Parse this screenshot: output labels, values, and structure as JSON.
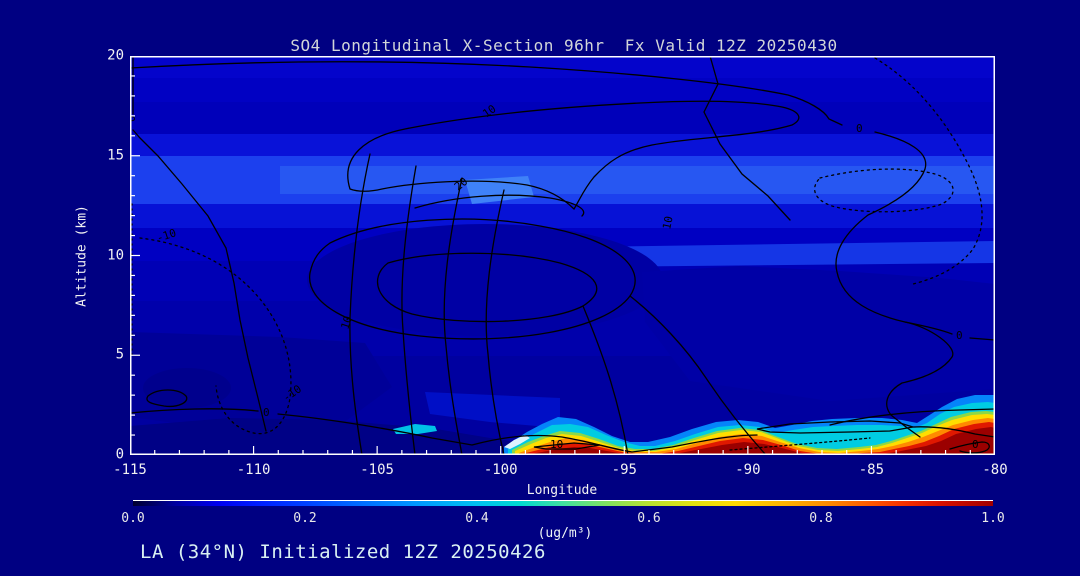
{
  "title": "SO4 Longitudinal X-Section 96hr  Fx Valid 12Z 20250430",
  "footer": "LA (34°N) Initialized 12Z 20250426",
  "axes": {
    "x": {
      "label": "Longitude",
      "ticks": [
        "-115",
        "-110",
        "-105",
        "-100",
        "-95",
        "-90",
        "-85",
        "-80"
      ]
    },
    "y": {
      "label": "Altitude (km)",
      "ticks": [
        "20",
        "15",
        "10",
        "5",
        "0"
      ]
    }
  },
  "colorbar": {
    "label": "(ug/m³)",
    "ticks": [
      "0.0",
      "0.2",
      "0.4",
      "0.6",
      "0.8",
      "1.0"
    ]
  },
  "plot": {
    "contour_labels": [
      "0",
      "10",
      "20",
      "10",
      "10",
      "-10",
      "-10",
      "0",
      "0",
      "0",
      "10",
      "0"
    ]
  },
  "chart_data": {
    "type": "heatmap",
    "title": "SO4 Longitudinal X-Section 96hr  Fx Valid 12Z 20250430",
    "subtitle": "LA (34°N) Initialized 12Z 20250426",
    "xlabel": "Longitude",
    "ylabel": "Altitude (km)",
    "xlim": [
      -115,
      -80
    ],
    "ylim": [
      0,
      20
    ],
    "x_ticks": [
      -115,
      -110,
      -105,
      -100,
      -95,
      -90,
      -85,
      -80
    ],
    "y_ticks": [
      0,
      5,
      10,
      15,
      20
    ],
    "fill_units": "ug/m3",
    "colorbar": {
      "label": "(ug/m³)",
      "min": 0.0,
      "max": 1.0,
      "ticks": [
        0.0,
        0.2,
        0.4,
        0.6,
        0.8,
        1.0
      ],
      "palette_stops": [
        "#000030",
        "#0000f0",
        "#0040ff",
        "#0098ff",
        "#00d8d0",
        "#80e060",
        "#e0e010",
        "#ffd800",
        "#ff8800",
        "#f42c00",
        "#a00000"
      ]
    },
    "fill_features": [
      {
        "feature": "bulk troposphere/stratosphere",
        "x": [
          -115,
          -80
        ],
        "alt_km": [
          2,
          20
        ],
        "value_range": [
          0.1,
          0.25
        ]
      },
      {
        "feature": "enhanced layer",
        "x": [
          -115,
          -80
        ],
        "alt_km": [
          12.5,
          15
        ],
        "value_range": [
          0.25,
          0.35
        ]
      },
      {
        "feature": "secondary enhanced layer (east half)",
        "x": [
          -96,
          -80
        ],
        "alt_km": [
          9.5,
          10.7
        ],
        "value_range": [
          0.22,
          0.3
        ]
      },
      {
        "feature": "mid-level minimum",
        "x": [
          -107,
          -92
        ],
        "alt_km": [
          3.5,
          9
        ],
        "value_range": [
          0.1,
          0.15
        ]
      },
      {
        "feature": "near-surface clean wedge (west)",
        "x": [
          -115,
          -98
        ],
        "alt_km": [
          0,
          1.5
        ],
        "value_range": [
          0.0,
          0.05
        ]
      },
      {
        "feature": "boundary-layer SO4 plume",
        "x": [
          -99,
          -80
        ],
        "alt_km": [
          0,
          1.3
        ],
        "value_range": [
          0.4,
          1.0
        ],
        "maxima_longitudes": [
          -97.5,
          -91,
          -84,
          -81
        ]
      }
    ],
    "overlay_contours": {
      "labels_visible": [
        -10,
        0,
        10,
        20
      ],
      "style": "black; solid = positive/zero, dotted = negative"
    }
  }
}
